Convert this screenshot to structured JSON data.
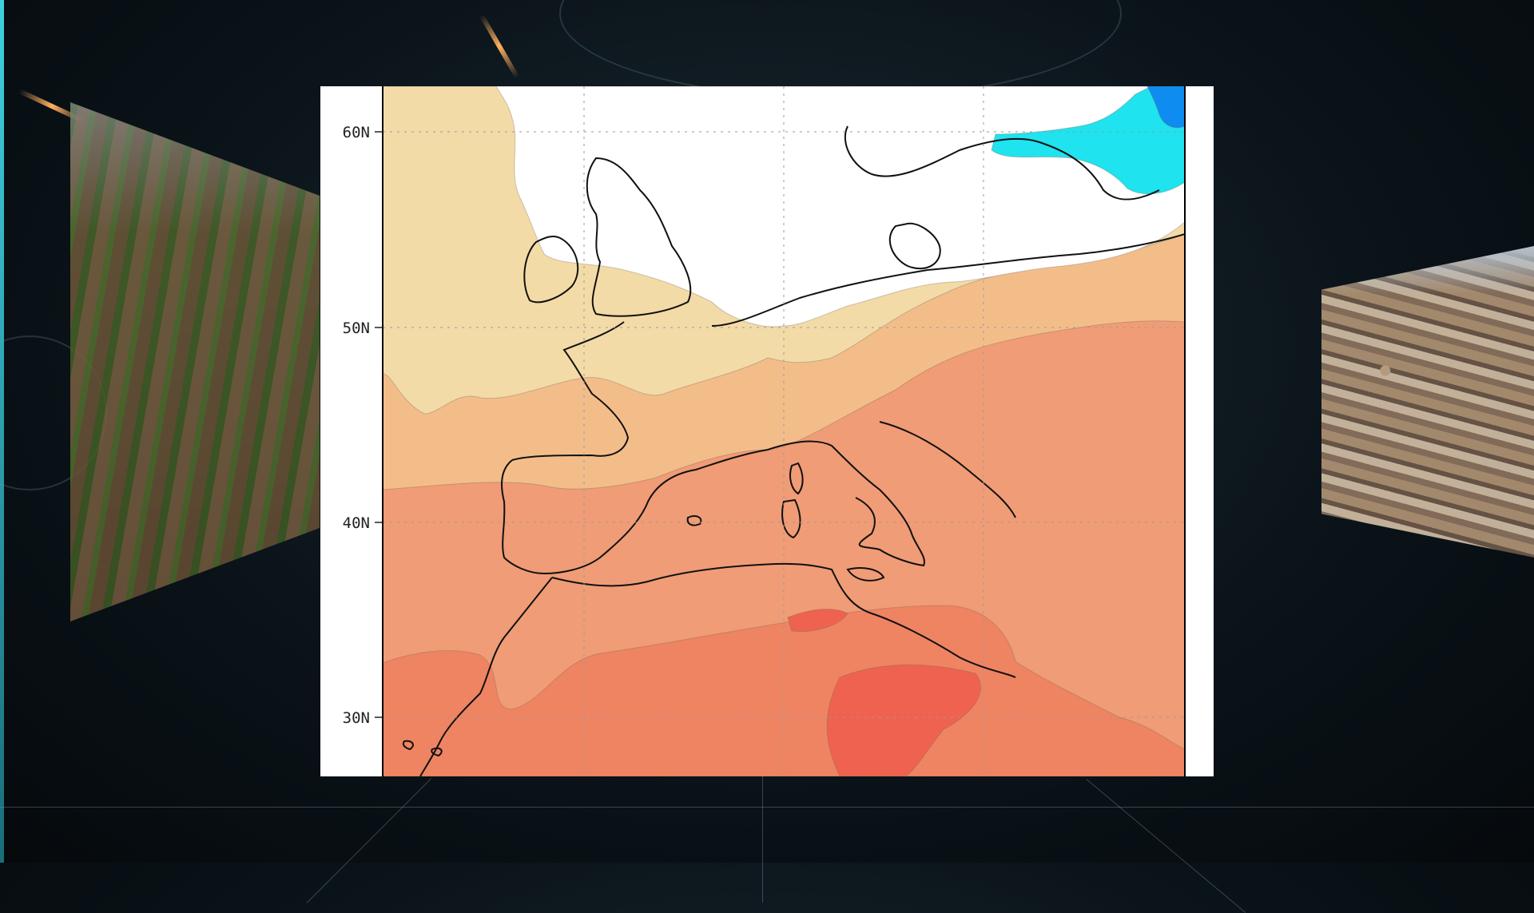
{
  "map": {
    "latitude_labels": [
      "60N",
      "50N",
      "40N",
      "30N"
    ],
    "latitude_values": [
      60,
      50,
      40,
      30
    ],
    "lat_range": [
      27,
      62.4
    ],
    "lon_range": [
      -15,
      25
    ],
    "contour_colors": {
      "white": "#ffffff",
      "light_tan": "#f3dba7",
      "tan": "#f3bd8a",
      "salmon": "#f09c76",
      "orange_red": "#ee8462",
      "red": "#ef6250",
      "cyan": "#1fe3ee",
      "blue": "#0f8cf0"
    },
    "coastline_color": "#111111",
    "grid": "dotted"
  }
}
